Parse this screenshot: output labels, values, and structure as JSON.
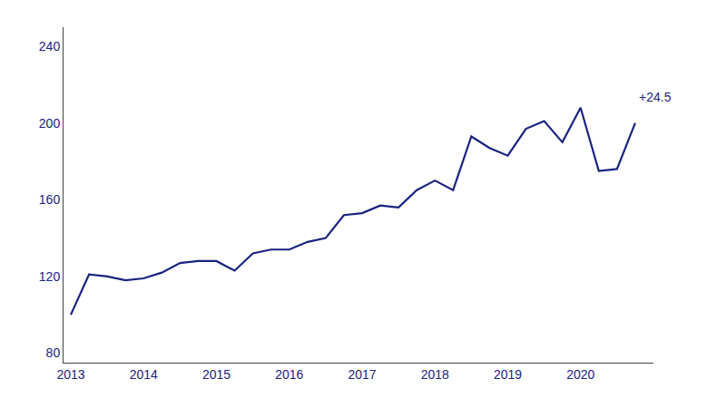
{
  "chart_data": {
    "type": "line",
    "x": [
      2013.0,
      2013.25,
      2013.5,
      2013.75,
      2014.0,
      2014.25,
      2014.5,
      2014.75,
      2015.0,
      2015.25,
      2015.5,
      2015.75,
      2016.0,
      2016.25,
      2016.5,
      2016.75,
      2017.0,
      2017.25,
      2017.5,
      2017.75,
      2018.0,
      2018.25,
      2018.5,
      2018.75,
      2019.0,
      2019.25,
      2019.5,
      2019.75,
      2020.0,
      2020.25,
      2020.5,
      2020.75
    ],
    "values": [
      100,
      121,
      120,
      118,
      119,
      122,
      127,
      128,
      128,
      123,
      132,
      134,
      134,
      138,
      140,
      152,
      153,
      157,
      156,
      165,
      170,
      165,
      193,
      187,
      183,
      197,
      201,
      190,
      208,
      175,
      176,
      200
    ],
    "color": "#1a237e",
    "xlim": [
      2012.9,
      2021.0
    ],
    "xticks": [
      2013,
      2014,
      2015,
      2016,
      2017,
      2018,
      2019,
      2020
    ],
    "ylim": [
      75,
      250
    ],
    "yticks": [
      80,
      120,
      160,
      200,
      240
    ],
    "grid": false,
    "annotations": [
      {
        "text": "+24.5",
        "x": 2020.78,
        "y": 209,
        "color": "#1a237e"
      }
    ]
  }
}
